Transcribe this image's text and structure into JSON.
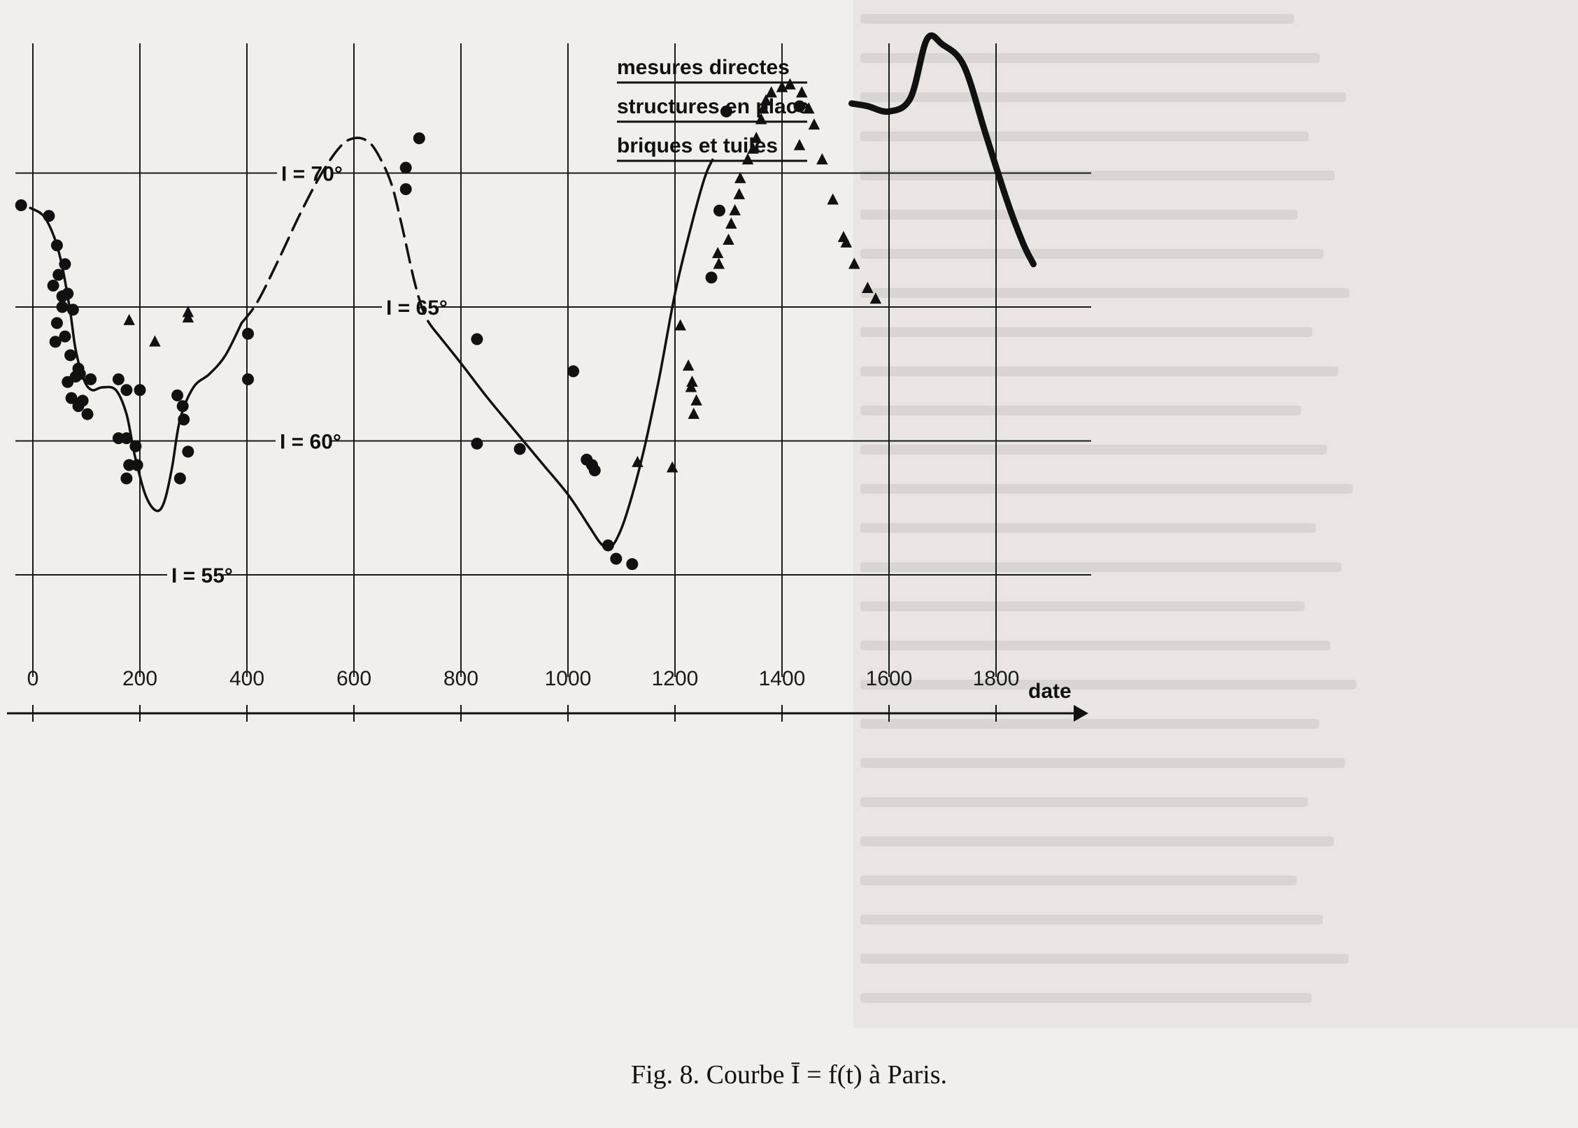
{
  "caption": "Fig. 8. Courbe Ī = f(t) à Paris.",
  "chart_data": {
    "type": "scatter",
    "xlabel": "date",
    "ylabel": "",
    "x_ticks": [
      0,
      200,
      400,
      600,
      800,
      1000,
      1200,
      1400,
      1600,
      1800
    ],
    "x_tick_labels": [
      "0",
      "200",
      "400",
      "600",
      "800",
      "1000",
      "1200",
      "1400",
      "1600",
      "1800"
    ],
    "xlim": [
      -10,
      1880
    ],
    "ylim": [
      52,
      74
    ],
    "grid": true,
    "isolines": [
      {
        "label": "I = 55°",
        "y": 55
      },
      {
        "label": "I = 60°",
        "y": 60
      },
      {
        "label": "I = 65°",
        "y": 65
      },
      {
        "label": "I = 70°",
        "y": 70
      }
    ],
    "legend": {
      "position": "top-right",
      "entries": [
        {
          "label": "mesures directes",
          "symbol": "line"
        },
        {
          "label": "structures en place",
          "symbol": "circle"
        },
        {
          "label": "briques et tuiles",
          "symbol": "triangle"
        }
      ]
    },
    "series": [
      {
        "name": "mesures directes",
        "kind": "line",
        "points": [
          [
            1530,
            72.6
          ],
          [
            1560,
            72.5
          ],
          [
            1600,
            72.3
          ],
          [
            1640,
            72.8
          ],
          [
            1671,
            75.0
          ],
          [
            1700,
            74.8
          ],
          [
            1740,
            74.0
          ],
          [
            1780,
            71.5
          ],
          [
            1820,
            69.0
          ],
          [
            1850,
            67.4
          ],
          [
            1870,
            66.6
          ]
        ]
      },
      {
        "name": "courbe",
        "kind": "curve",
        "segments": [
          {
            "style": "solid",
            "points": [
              [
                -5,
                68.7
              ],
              [
                20,
                68.4
              ],
              [
                40,
                67.6
              ],
              [
                55,
                66.5
              ],
              [
                70,
                64.8
              ],
              [
                80,
                63.4
              ],
              [
                95,
                62.3
              ],
              [
                110,
                61.9
              ],
              [
                130,
                62.0
              ],
              [
                155,
                61.9
              ],
              [
                175,
                61.0
              ],
              [
                190,
                59.5
              ],
              [
                210,
                58.0
              ],
              [
                230,
                57.4
              ],
              [
                245,
                57.7
              ],
              [
                260,
                59.0
              ],
              [
                275,
                60.8
              ],
              [
                300,
                62.0
              ],
              [
                330,
                62.5
              ],
              [
                360,
                63.2
              ],
              [
                390,
                64.4
              ]
            ]
          },
          {
            "style": "dashed",
            "points": [
              [
                390,
                64.4
              ],
              [
                420,
                65.2
              ],
              [
                460,
                66.8
              ],
              [
                500,
                68.5
              ],
              [
                540,
                70.0
              ],
              [
                575,
                71.0
              ],
              [
                600,
                71.3
              ],
              [
                625,
                71.2
              ],
              [
                645,
                70.7
              ],
              [
                670,
                69.6
              ],
              [
                690,
                68.0
              ],
              [
                715,
                65.8
              ],
              [
                735,
                64.6
              ],
              [
                760,
                63.9
              ]
            ]
          },
          {
            "style": "solid",
            "points": [
              [
                760,
                63.9
              ],
              [
                800,
                62.9
              ],
              [
                850,
                61.6
              ],
              [
                900,
                60.4
              ],
              [
                950,
                59.2
              ],
              [
                1000,
                58.0
              ],
              [
                1040,
                56.8
              ],
              [
                1060,
                56.2
              ],
              [
                1075,
                56.0
              ],
              [
                1090,
                56.3
              ],
              [
                1110,
                57.3
              ],
              [
                1140,
                59.5
              ],
              [
                1170,
                62.3
              ],
              [
                1200,
                65.5
              ],
              [
                1230,
                68.0
              ],
              [
                1255,
                69.8
              ],
              [
                1270,
                70.5
              ]
            ]
          }
        ]
      },
      {
        "name": "structures en place",
        "kind": "scatter",
        "marker": "circle",
        "points": [
          [
            -22,
            68.8
          ],
          [
            30,
            68.4
          ],
          [
            45,
            67.3
          ],
          [
            60,
            66.6
          ],
          [
            48,
            66.2
          ],
          [
            38,
            65.8
          ],
          [
            55,
            65.4
          ],
          [
            65,
            65.5
          ],
          [
            55,
            65.0
          ],
          [
            45,
            64.4
          ],
          [
            60,
            63.9
          ],
          [
            42,
            63.7
          ],
          [
            75,
            64.9
          ],
          [
            70,
            63.2
          ],
          [
            85,
            62.7
          ],
          [
            80,
            62.4
          ],
          [
            88,
            62.5
          ],
          [
            65,
            62.2
          ],
          [
            72,
            61.6
          ],
          [
            85,
            61.3
          ],
          [
            93,
            61.5
          ],
          [
            102,
            61.0
          ],
          [
            108,
            62.3
          ],
          [
            160,
            62.3
          ],
          [
            175,
            61.9
          ],
          [
            160,
            60.1
          ],
          [
            175,
            60.1
          ],
          [
            200,
            61.9
          ],
          [
            180,
            59.1
          ],
          [
            195,
            59.1
          ],
          [
            192,
            59.8
          ],
          [
            175,
            58.6
          ],
          [
            270,
            61.7
          ],
          [
            280,
            61.3
          ],
          [
            282,
            60.8
          ],
          [
            290,
            59.6
          ],
          [
            275,
            58.6
          ],
          [
            402,
            64.0
          ],
          [
            402,
            62.3
          ],
          [
            722,
            71.3
          ],
          [
            697,
            70.2
          ],
          [
            697,
            69.4
          ],
          [
            830,
            63.8
          ],
          [
            830,
            59.9
          ],
          [
            910,
            59.7
          ],
          [
            1010,
            62.6
          ],
          [
            1035,
            59.3
          ],
          [
            1045,
            59.1
          ],
          [
            1050,
            58.9
          ],
          [
            1075,
            56.1
          ],
          [
            1090,
            55.6
          ],
          [
            1120,
            55.4
          ],
          [
            1268,
            66.1
          ],
          [
            1283,
            68.6
          ],
          [
            1296,
            72.3
          ]
        ]
      },
      {
        "name": "briques et tuiles",
        "kind": "scatter",
        "marker": "triangle",
        "points": [
          [
            180,
            64.5
          ],
          [
            228,
            63.7
          ],
          [
            290,
            64.8
          ],
          [
            290,
            64.6
          ],
          [
            1210,
            64.3
          ],
          [
            1225,
            62.8
          ],
          [
            1232,
            62.2
          ],
          [
            1230,
            62.0
          ],
          [
            1240,
            61.5
          ],
          [
            1235,
            61.0
          ],
          [
            1130,
            59.2
          ],
          [
            1195,
            59.0
          ],
          [
            1280,
            67.0
          ],
          [
            1282,
            66.6
          ],
          [
            1300,
            67.5
          ],
          [
            1305,
            68.1
          ],
          [
            1312,
            68.6
          ],
          [
            1320,
            69.2
          ],
          [
            1322,
            69.8
          ],
          [
            1336,
            70.5
          ],
          [
            1346,
            70.9
          ],
          [
            1352,
            71.3
          ],
          [
            1361,
            72.0
          ],
          [
            1365,
            72.4
          ],
          [
            1370,
            72.7
          ],
          [
            1380,
            73.0
          ],
          [
            1400,
            73.2
          ],
          [
            1415,
            73.3
          ],
          [
            1437,
            73.0
          ],
          [
            1450,
            72.4
          ],
          [
            1460,
            71.8
          ],
          [
            1475,
            70.5
          ],
          [
            1495,
            69.0
          ],
          [
            1515,
            67.6
          ],
          [
            1520,
            67.4
          ],
          [
            1535,
            66.6
          ],
          [
            1560,
            65.7
          ],
          [
            1575,
            65.3
          ]
        ]
      }
    ]
  }
}
